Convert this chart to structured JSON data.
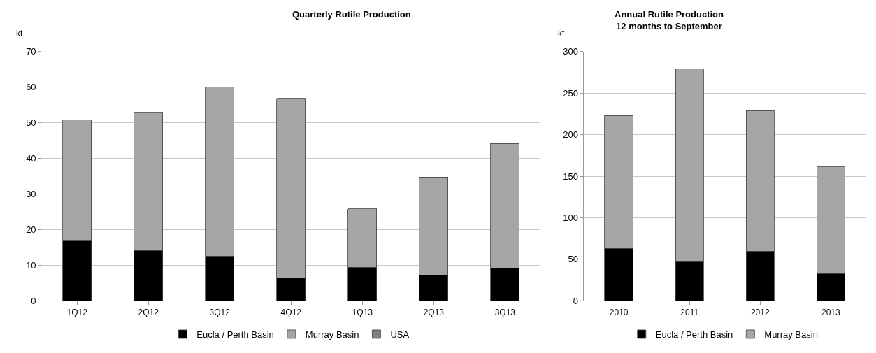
{
  "chart_data": [
    {
      "type": "bar",
      "title": "Quarterly Rutile Production",
      "ylabel": "kt",
      "stacked": true,
      "categories": [
        "1Q12",
        "2Q12",
        "3Q12",
        "4Q12",
        "1Q13",
        "2Q13",
        "3Q13"
      ],
      "ylim": [
        0,
        70
      ],
      "yticks": [
        0,
        10,
        20,
        30,
        40,
        50,
        60,
        70
      ],
      "grid": "y",
      "legend": "bottom",
      "series": [
        {
          "name": "Eucla / Perth Basin",
          "color": "#000000",
          "values": [
            16.8,
            14.1,
            12.6,
            6.5,
            9.4,
            7.3,
            9.2
          ]
        },
        {
          "name": "Murray Basin",
          "color": "#a6a6a6",
          "values": [
            34.0,
            38.8,
            47.4,
            50.3,
            16.4,
            27.5,
            35.0
          ]
        },
        {
          "name": "USA",
          "color": "#808080",
          "values": [
            null,
            null,
            null,
            null,
            null,
            null,
            null
          ]
        }
      ]
    },
    {
      "type": "bar",
      "title": "Annual Rutile Production\n12 months to September",
      "ylabel": "kt",
      "stacked": true,
      "categories": [
        "2010",
        "2011",
        "2012",
        "2013"
      ],
      "ylim": [
        0,
        300
      ],
      "yticks": [
        0,
        50,
        100,
        150,
        200,
        250,
        300
      ],
      "grid": "y",
      "legend": "bottom",
      "series": [
        {
          "name": "Eucla / Perth Basin",
          "color": "#000000",
          "values": [
            63,
            47,
            60,
            33
          ]
        },
        {
          "name": "Murray Basin",
          "color": "#a6a6a6",
          "values": [
            160,
            232,
            169,
            128
          ]
        }
      ]
    }
  ]
}
